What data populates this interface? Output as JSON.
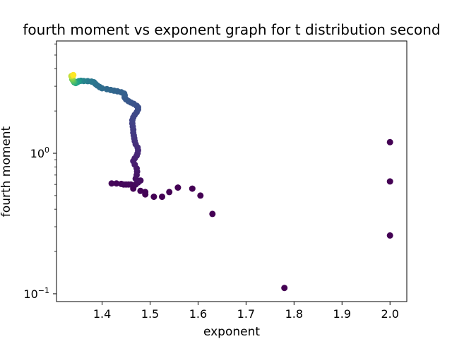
{
  "chart_data": {
    "type": "scatter",
    "title": "fourth moment vs exponent graph for t distribution second",
    "xlabel": "exponent",
    "ylabel": "fourth moment",
    "xlim": [
      1.305,
      2.035
    ],
    "ylim": [
      0.088,
      6.3
    ],
    "yscale": "log",
    "grid": false,
    "colormap": "viridis",
    "x_ticks": [
      {
        "value": 1.4,
        "label": "1.4"
      },
      {
        "value": 1.5,
        "label": "1.5"
      },
      {
        "value": 1.6,
        "label": "1.6"
      },
      {
        "value": 1.7,
        "label": "1.7"
      },
      {
        "value": 1.8,
        "label": "1.8"
      },
      {
        "value": 1.9,
        "label": "1.9"
      },
      {
        "value": 2.0,
        "label": "2.0"
      }
    ],
    "y_ticks": [
      {
        "value": 1.0,
        "base": "10",
        "exp": "0"
      },
      {
        "value": 0.1,
        "base": "10",
        "exp": "−1"
      }
    ],
    "y_minor_ticks": [
      0.2,
      0.3,
      0.4,
      0.5,
      0.6,
      0.7,
      0.8,
      0.9,
      2,
      3,
      4,
      5,
      6
    ],
    "points": [
      [
        2.0,
        1.2,
        0.0
      ],
      [
        2.0,
        0.63,
        0.0
      ],
      [
        2.0,
        0.26,
        0.0
      ],
      [
        1.78,
        0.11,
        0.0
      ],
      [
        1.63,
        0.37,
        0.0
      ],
      [
        1.605,
        0.5,
        0.0
      ],
      [
        1.588,
        0.56,
        0.0
      ],
      [
        1.558,
        0.57,
        0.0
      ],
      [
        1.54,
        0.53,
        0.0
      ],
      [
        1.525,
        0.49,
        0.0
      ],
      [
        1.508,
        0.49,
        0.0
      ],
      [
        1.49,
        0.51,
        0.0
      ],
      [
        1.49,
        0.53,
        0.01
      ],
      [
        1.48,
        0.54,
        0.01
      ],
      [
        1.465,
        0.56,
        0.01
      ],
      [
        1.46,
        0.6,
        0.02
      ],
      [
        1.45,
        0.6,
        0.02
      ],
      [
        1.44,
        0.605,
        0.02
      ],
      [
        1.43,
        0.61,
        0.02
      ],
      [
        1.42,
        0.61,
        0.02
      ],
      [
        1.445,
        0.6,
        0.03
      ],
      [
        1.455,
        0.6,
        0.03
      ],
      [
        1.47,
        0.6,
        0.03
      ],
      [
        1.475,
        0.62,
        0.04
      ],
      [
        1.48,
        0.64,
        0.05
      ],
      [
        1.47,
        0.66,
        0.06
      ],
      [
        1.472,
        0.7,
        0.07
      ],
      [
        1.473,
        0.74,
        0.08
      ],
      [
        1.472,
        0.78,
        0.09
      ],
      [
        1.468,
        0.83,
        0.1
      ],
      [
        1.465,
        0.88,
        0.11
      ],
      [
        1.468,
        0.92,
        0.12
      ],
      [
        1.472,
        0.96,
        0.13
      ],
      [
        1.474,
        1.0,
        0.14
      ],
      [
        1.475,
        1.05,
        0.15
      ],
      [
        1.474,
        1.1,
        0.16
      ],
      [
        1.47,
        1.16,
        0.17
      ],
      [
        1.468,
        1.22,
        0.18
      ],
      [
        1.467,
        1.28,
        0.19
      ],
      [
        1.466,
        1.34,
        0.2
      ],
      [
        1.465,
        1.4,
        0.21
      ],
      [
        1.465,
        1.47,
        0.22
      ],
      [
        1.464,
        1.55,
        0.23
      ],
      [
        1.463,
        1.63,
        0.24
      ],
      [
        1.463,
        1.72,
        0.25
      ],
      [
        1.465,
        1.8,
        0.26
      ],
      [
        1.468,
        1.88,
        0.27
      ],
      [
        1.472,
        1.96,
        0.28
      ],
      [
        1.475,
        2.05,
        0.29
      ],
      [
        1.475,
        2.12,
        0.3
      ],
      [
        1.472,
        2.18,
        0.31
      ],
      [
        1.466,
        2.25,
        0.32
      ],
      [
        1.46,
        2.3,
        0.33
      ],
      [
        1.455,
        2.35,
        0.34
      ],
      [
        1.45,
        2.42,
        0.35
      ],
      [
        1.447,
        2.5,
        0.36
      ],
      [
        1.447,
        2.58,
        0.37
      ],
      [
        1.446,
        2.66,
        0.38
      ],
      [
        1.44,
        2.72,
        0.39
      ],
      [
        1.432,
        2.76,
        0.4
      ],
      [
        1.425,
        2.79,
        0.41
      ],
      [
        1.418,
        2.82,
        0.42
      ],
      [
        1.41,
        2.86,
        0.43
      ],
      [
        1.4,
        2.9,
        0.44
      ],
      [
        1.395,
        2.96,
        0.45
      ],
      [
        1.39,
        3.04,
        0.46
      ],
      [
        1.386,
        3.12,
        0.47
      ],
      [
        1.383,
        3.2,
        0.48
      ],
      [
        1.378,
        3.24,
        0.5
      ],
      [
        1.37,
        3.26,
        0.52
      ],
      [
        1.362,
        3.27,
        0.55
      ],
      [
        1.356,
        3.28,
        0.58
      ],
      [
        1.352,
        3.26,
        0.62
      ],
      [
        1.35,
        3.24,
        0.66
      ],
      [
        1.348,
        3.2,
        0.7
      ],
      [
        1.345,
        3.16,
        0.74
      ],
      [
        1.342,
        3.2,
        0.78
      ],
      [
        1.34,
        3.28,
        0.82
      ],
      [
        1.338,
        3.36,
        0.86
      ],
      [
        1.338,
        3.46,
        0.9
      ],
      [
        1.336,
        3.54,
        0.95
      ],
      [
        1.34,
        3.6,
        1.0
      ]
    ]
  }
}
